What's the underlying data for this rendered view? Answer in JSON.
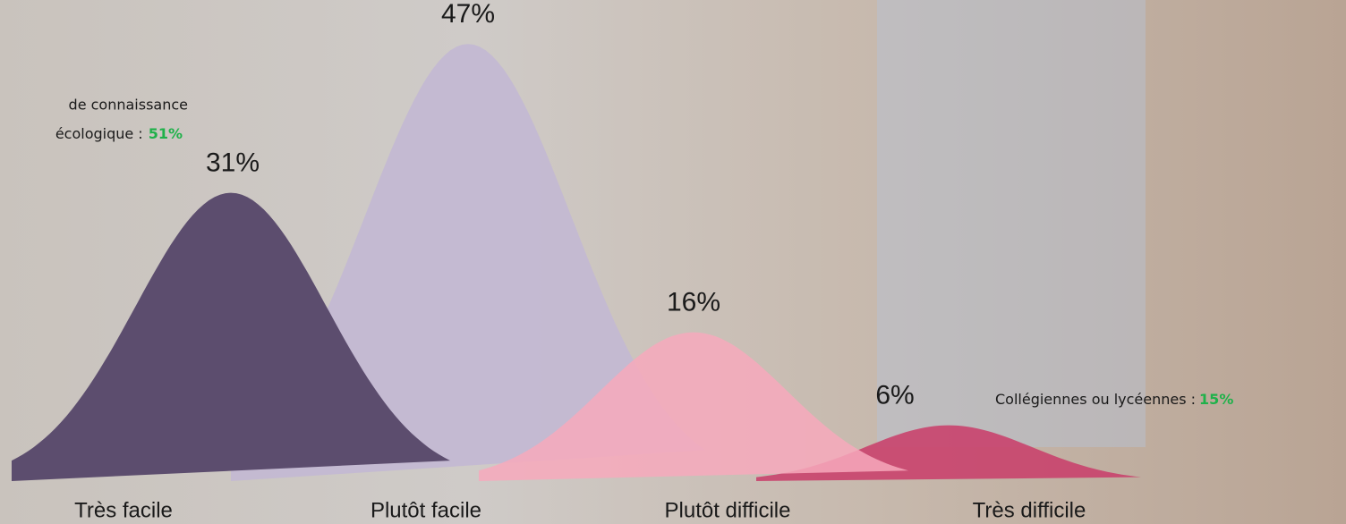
{
  "chart_data": {
    "type": "bell",
    "categories": [
      "Très facile",
      "Plutôt facile",
      "Plutôt difficile",
      "Très difficile"
    ],
    "values": [
      31,
      47,
      16,
      6
    ],
    "value_labels": [
      "31%",
      "47%",
      "16%",
      "6%"
    ],
    "colors": [
      "#5c4d6e",
      "#c3b9d3",
      "#f7a9bc",
      "#c9436d"
    ],
    "annotations": [
      {
        "lines": [
          "de connaissance",
          "écologique :"
        ],
        "highlight": "51%"
      },
      {
        "lines": [
          "Collégiennes ou lycéennes :"
        ],
        "highlight": "15%"
      }
    ]
  }
}
